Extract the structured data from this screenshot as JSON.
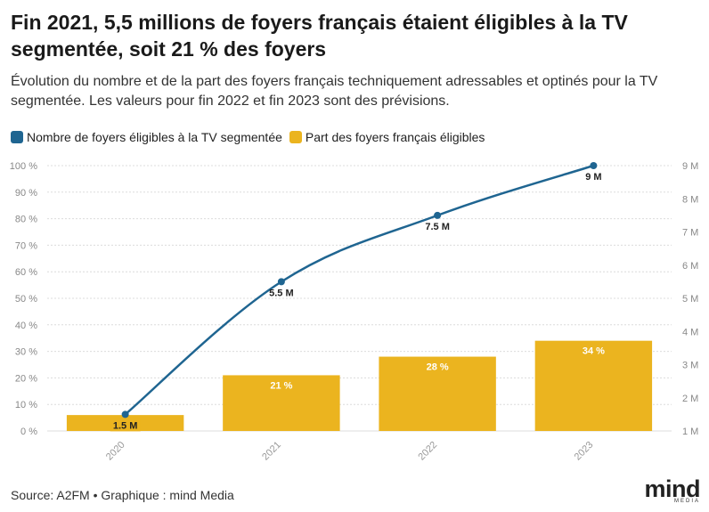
{
  "header": {
    "title": "Fin 2021, 5,5 millions de foyers français étaient éligibles à la TV segmentée, soit 21 % des foyers",
    "subtitle": "Évolution du nombre et de la part des foyers français techniquement adressables et optinés pour la TV segmentée. Les valeurs pour fin 2022 et fin 2023 sont des prévisions."
  },
  "legend": {
    "line_label": "Nombre de foyers éligibles à la TV segmentée",
    "bar_label": "Part des foyers français éligibles"
  },
  "footer": {
    "source": "Source: A2FM • Graphique : mind Media",
    "logo_text": "mind",
    "logo_sub": "MEDIA"
  },
  "colors": {
    "line": "#1f6591",
    "bar": "#ebb41f",
    "grid": "#dcdcdc",
    "tick": "#888888"
  },
  "chart_data": {
    "type": "bar",
    "categories": [
      "2020",
      "2021",
      "2022",
      "2023"
    ],
    "series": [
      {
        "name": "Part des foyers français éligibles",
        "type": "bar",
        "axis": "left",
        "values": [
          6,
          21,
          28,
          34
        ],
        "labels": [
          "",
          "21 %",
          "28 %",
          "34 %"
        ]
      },
      {
        "name": "Nombre de foyers éligibles à la TV segmentée",
        "type": "line",
        "axis": "right",
        "values": [
          1.5,
          5.5,
          7.5,
          9
        ],
        "labels": [
          "1.5 M",
          "5.5 M",
          "7.5 M",
          "9 M"
        ]
      }
    ],
    "y_left": {
      "ylim": [
        0,
        100
      ],
      "ticks": [
        "0 %",
        "10 %",
        "20 %",
        "30 %",
        "40 %",
        "50 %",
        "60 %",
        "70 %",
        "80 %",
        "90 %",
        "100 %"
      ]
    },
    "y_right": {
      "ylim": [
        1,
        9
      ],
      "ticks": [
        "1 M",
        "2 M",
        "3 M",
        "4 M",
        "5 M",
        "6 M",
        "7 M",
        "8 M",
        "9 M"
      ]
    },
    "grid": true,
    "legend_position": "top-left"
  }
}
